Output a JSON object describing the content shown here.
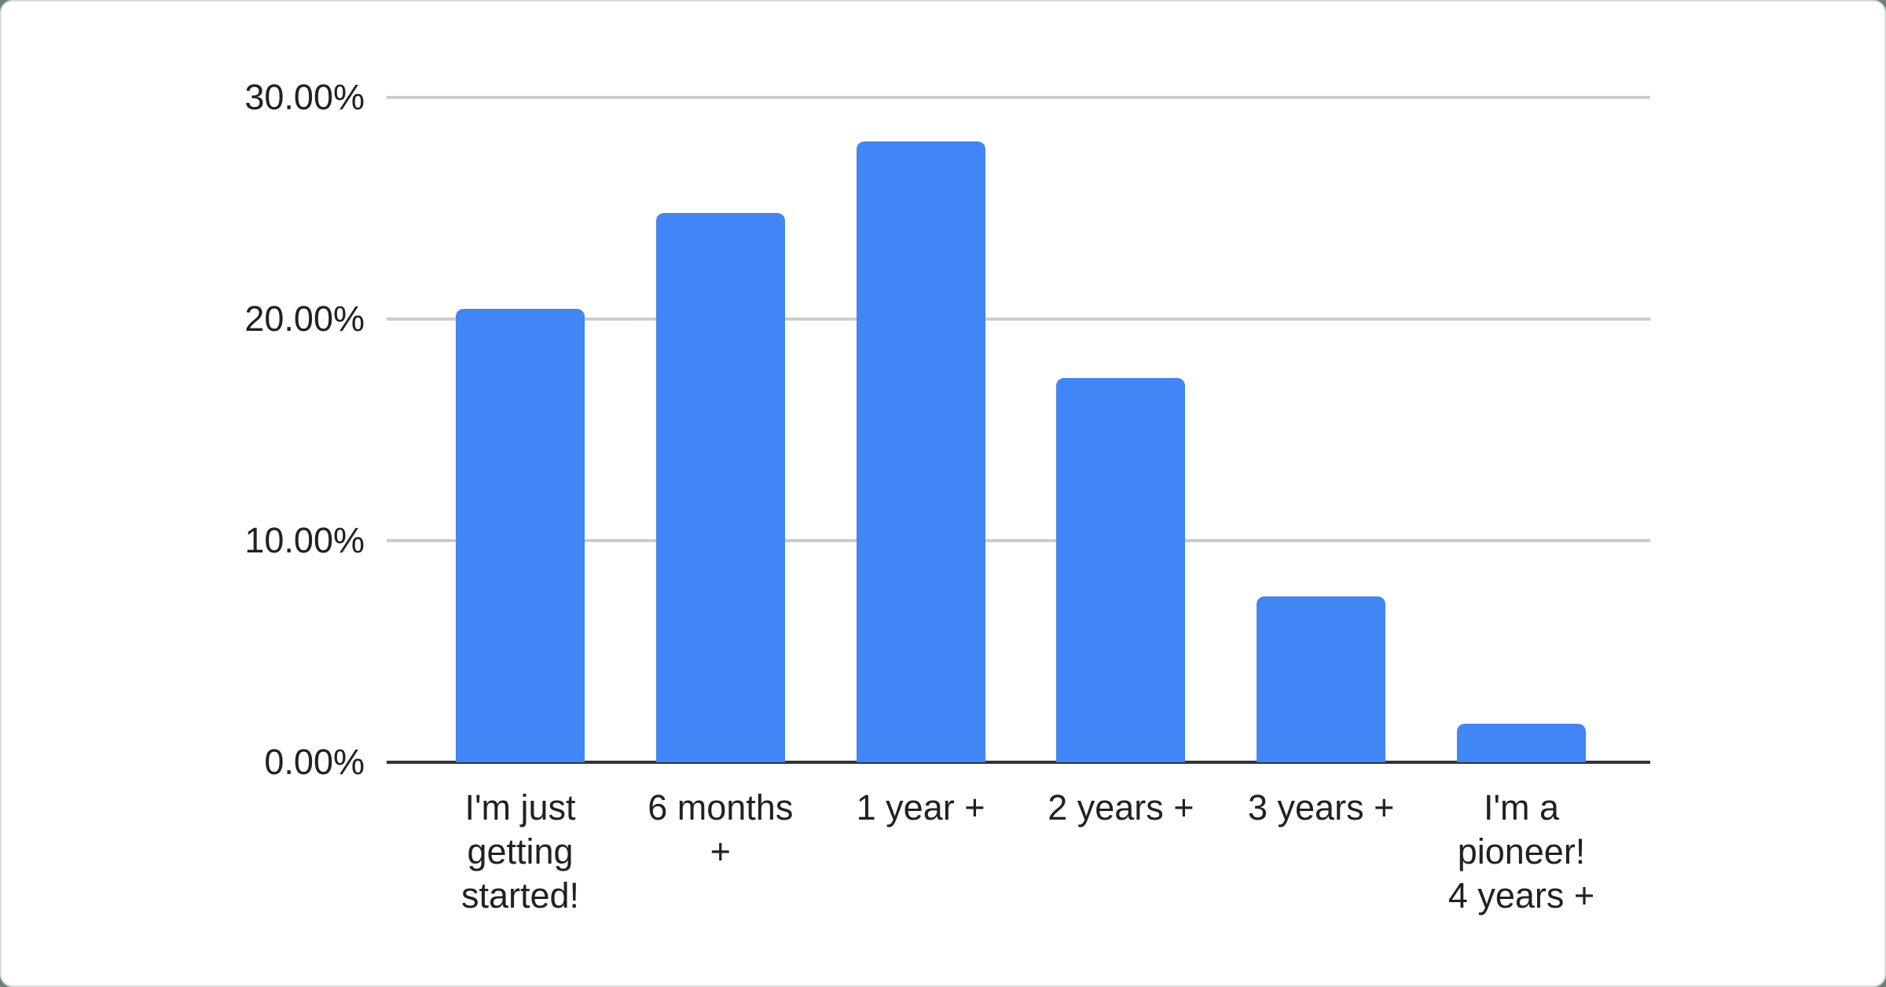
{
  "page": {
    "background_color": "#6e8176",
    "card_background_color": "#ffffff",
    "card_border_color": "#dadde0"
  },
  "chart_data": {
    "type": "bar",
    "title": "",
    "xlabel": "",
    "ylabel": "",
    "legend": "none",
    "grid": true,
    "ylim": [
      0,
      30
    ],
    "categories": [
      "I'm just getting started!",
      "6 months +",
      "1 year +",
      "2 years +",
      "3 years +",
      "I'm a pioneer! 4 years +"
    ],
    "category_label_lines": [
      [
        "I'm just",
        "getting",
        "started!"
      ],
      [
        "6 months",
        "+"
      ],
      [
        "1 year +"
      ],
      [
        "2 years +"
      ],
      [
        "3 years +"
      ],
      [
        "I'm a",
        "pioneer!",
        "4 years +"
      ]
    ],
    "values": [
      20.45,
      24.8,
      28.0,
      17.35,
      7.5,
      1.75
    ],
    "value_unit": "percent",
    "y_ticks": [
      {
        "value": 0,
        "label": "0.00%"
      },
      {
        "value": 10,
        "label": "10.00%"
      },
      {
        "value": 20,
        "label": "20.00%"
      },
      {
        "value": 30,
        "label": "30.00%"
      }
    ],
    "bar_color": "#4285f4",
    "gridline_color": "#cccccc",
    "axis_line_color": "#333333",
    "text_color": "#212121"
  }
}
